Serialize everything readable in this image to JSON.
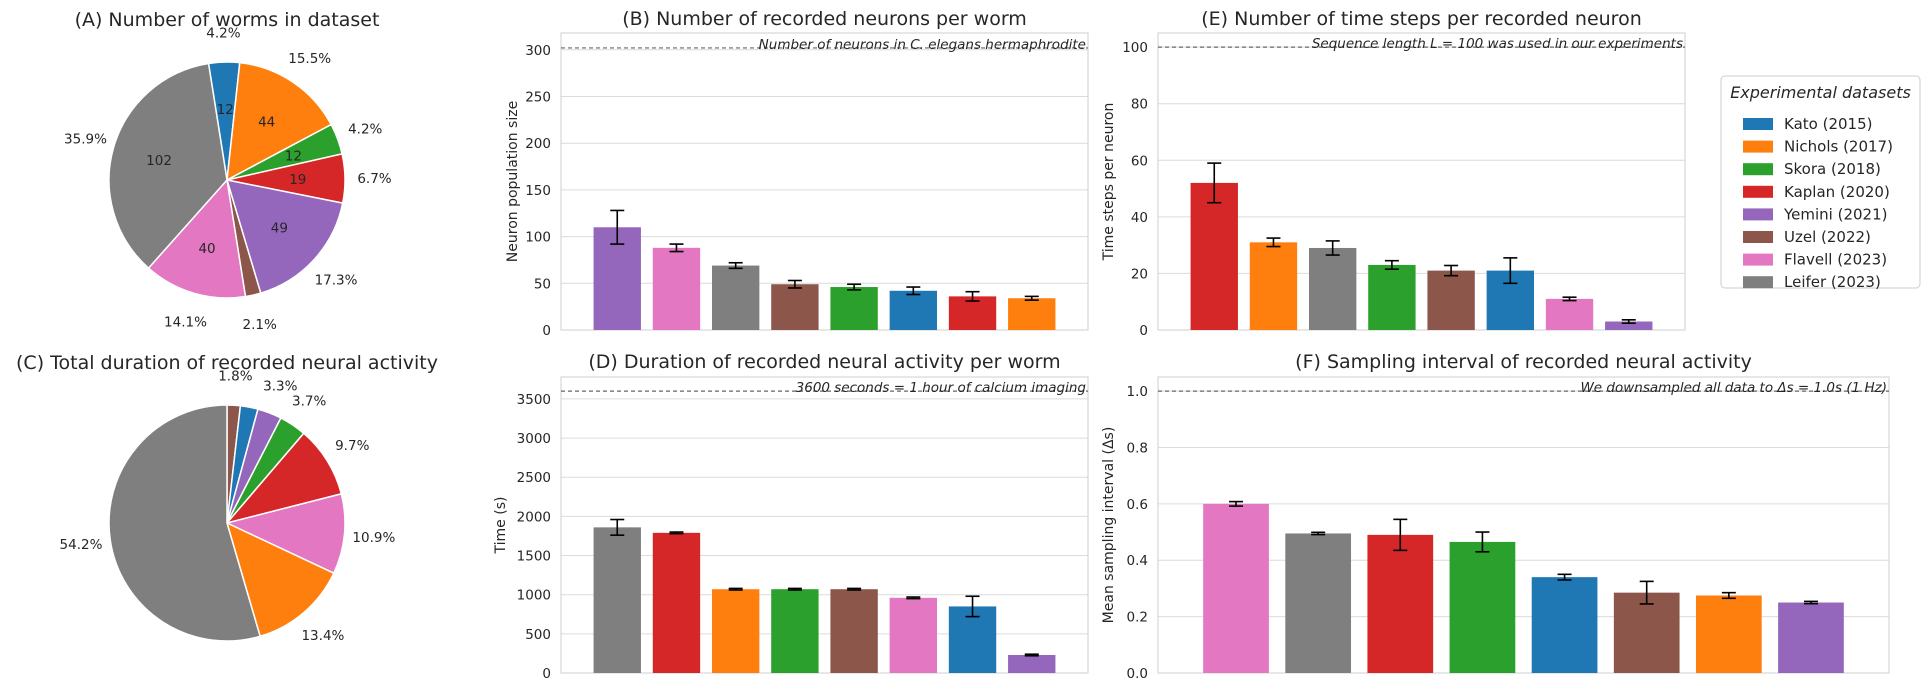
{
  "colors": {
    "Kato (2015)": "#1f77b4",
    "Nichols (2017)": "#ff7f0e",
    "Skora (2018)": "#2ca02c",
    "Kaplan (2020)": "#d62728",
    "Yemini (2021)": "#9467bd",
    "Uzel (2022)": "#8c564b",
    "Flavell (2023)": "#e377c2",
    "Leifer (2023)": "#7f7f7f"
  },
  "legend": {
    "title": "Experimental datasets",
    "items": [
      "Kato (2015)",
      "Nichols (2017)",
      "Skora (2018)",
      "Kaplan (2020)",
      "Yemini (2021)",
      "Uzel (2022)",
      "Flavell (2023)",
      "Leifer (2023)"
    ]
  },
  "chart_data": [
    {
      "id": "A",
      "type": "pie",
      "title": "(A) Number of worms in dataset",
      "slices": [
        {
          "dataset": "Kato (2015)",
          "value": 12,
          "pct": "4.2%"
        },
        {
          "dataset": "Nichols (2017)",
          "value": 44,
          "pct": "15.5%"
        },
        {
          "dataset": "Skora (2018)",
          "value": 12,
          "pct": "4.2%"
        },
        {
          "dataset": "Kaplan (2020)",
          "value": 19,
          "pct": "6.7%"
        },
        {
          "dataset": "Yemini (2021)",
          "value": 49,
          "pct": "17.3%"
        },
        {
          "dataset": "Uzel (2022)",
          "value": 6,
          "pct": "2.1%"
        },
        {
          "dataset": "Flavell (2023)",
          "value": 40,
          "pct": "14.1%"
        },
        {
          "dataset": "Leifer (2023)",
          "value": 102,
          "pct": "35.9%"
        }
      ],
      "show_counts": true,
      "counts_shown": {
        "Uzel (2022)": ""
      }
    },
    {
      "id": "C",
      "type": "pie",
      "title": "(C) Total duration of recorded neural activity",
      "slices": [
        {
          "dataset": "Uzel (2022)",
          "value": 1.8,
          "pct": "1.8%"
        },
        {
          "dataset": "Kato (2015)",
          "value": 2.4,
          "pct": ""
        },
        {
          "dataset": "Yemini (2021)",
          "value": 3.3,
          "pct": "3.3%"
        },
        {
          "dataset": "Skora (2018)",
          "value": 3.7,
          "pct": "3.7%"
        },
        {
          "dataset": "Kaplan (2020)",
          "value": 9.7,
          "pct": "9.7%"
        },
        {
          "dataset": "Flavell (2023)",
          "value": 10.9,
          "pct": "10.9%"
        },
        {
          "dataset": "Nichols (2017)",
          "value": 13.4,
          "pct": "13.4%"
        },
        {
          "dataset": "Leifer (2023)",
          "value": 54.2,
          "pct": "54.2%"
        }
      ],
      "show_counts": false
    },
    {
      "id": "B",
      "type": "bar",
      "title": "(B) Number of recorded neurons per worm",
      "ylabel": "Neuron population size",
      "ylim": [
        0,
        318
      ],
      "yticks": [
        0,
        50,
        100,
        150,
        200,
        250,
        300
      ],
      "reference": {
        "value": 302,
        "note": "Number of neurons in C. elegans hermaphrodite"
      },
      "bars": [
        {
          "dataset": "Yemini (2021)",
          "value": 110,
          "err": 18
        },
        {
          "dataset": "Flavell (2023)",
          "value": 88,
          "err": 4
        },
        {
          "dataset": "Leifer (2023)",
          "value": 69,
          "err": 3
        },
        {
          "dataset": "Uzel (2022)",
          "value": 49,
          "err": 4
        },
        {
          "dataset": "Skora (2018)",
          "value": 46,
          "err": 3
        },
        {
          "dataset": "Kato (2015)",
          "value": 42,
          "err": 4
        },
        {
          "dataset": "Kaplan (2020)",
          "value": 36,
          "err": 5
        },
        {
          "dataset": "Nichols (2017)",
          "value": 34,
          "err": 2
        }
      ]
    },
    {
      "id": "E",
      "type": "bar",
      "title": "(E) Number of time steps per recorded neuron",
      "ylabel": "Time steps per neuron",
      "ylim": [
        0,
        105
      ],
      "yticks": [
        0,
        20,
        40,
        60,
        80,
        100
      ],
      "reference": {
        "value": 100,
        "note": "Sequence length L = 100 was used in our experiments"
      },
      "bars": [
        {
          "dataset": "Kaplan (2020)",
          "value": 52,
          "err": 7
        },
        {
          "dataset": "Nichols (2017)",
          "value": 31,
          "err": 1.5
        },
        {
          "dataset": "Leifer (2023)",
          "value": 29,
          "err": 2.5
        },
        {
          "dataset": "Skora (2018)",
          "value": 23,
          "err": 1.5
        },
        {
          "dataset": "Uzel (2022)",
          "value": 21,
          "err": 1.8
        },
        {
          "dataset": "Kato (2015)",
          "value": 21,
          "err": 4.5
        },
        {
          "dataset": "Flavell (2023)",
          "value": 11,
          "err": 0.6
        },
        {
          "dataset": "Yemini (2021)",
          "value": 3,
          "err": 0.6
        }
      ]
    },
    {
      "id": "D",
      "type": "bar",
      "title": "(D) Duration of recorded neural activity per worm",
      "ylabel": "Time (s)",
      "ylim": [
        0,
        3780
      ],
      "yticks": [
        0,
        500,
        1000,
        1500,
        2000,
        2500,
        3000,
        3500
      ],
      "reference": {
        "value": 3600,
        "note": "3600 seconds = 1 hour of calcium imaging"
      },
      "bars": [
        {
          "dataset": "Leifer (2023)",
          "value": 1860,
          "err": 100
        },
        {
          "dataset": "Kaplan (2020)",
          "value": 1790,
          "err": 10
        },
        {
          "dataset": "Nichols (2017)",
          "value": 1070,
          "err": 10
        },
        {
          "dataset": "Skora (2018)",
          "value": 1070,
          "err": 10
        },
        {
          "dataset": "Uzel (2022)",
          "value": 1070,
          "err": 10
        },
        {
          "dataset": "Flavell (2023)",
          "value": 960,
          "err": 10
        },
        {
          "dataset": "Kato (2015)",
          "value": 850,
          "err": 130
        },
        {
          "dataset": "Yemini (2021)",
          "value": 230,
          "err": 10
        }
      ]
    },
    {
      "id": "F",
      "type": "bar",
      "title": "(F) Sampling interval of recorded neural activity",
      "ylabel": "Mean sampling interval (Δs)",
      "ylim": [
        0,
        1.05
      ],
      "yticks": [
        0.0,
        0.2,
        0.4,
        0.6,
        0.8,
        1.0
      ],
      "reference": {
        "value": 1.0,
        "note": "We downsampled all data to Δs = 1.0s (1 Hz)"
      },
      "bars": [
        {
          "dataset": "Flavell (2023)",
          "value": 0.6,
          "err": 0.008
        },
        {
          "dataset": "Leifer (2023)",
          "value": 0.495,
          "err": 0.004
        },
        {
          "dataset": "Kaplan (2020)",
          "value": 0.49,
          "err": 0.055
        },
        {
          "dataset": "Skora (2018)",
          "value": 0.465,
          "err": 0.035
        },
        {
          "dataset": "Kato (2015)",
          "value": 0.34,
          "err": 0.01
        },
        {
          "dataset": "Uzel (2022)",
          "value": 0.285,
          "err": 0.04
        },
        {
          "dataset": "Nichols (2017)",
          "value": 0.275,
          "err": 0.01
        },
        {
          "dataset": "Yemini (2021)",
          "value": 0.25,
          "err": 0.004
        }
      ]
    }
  ]
}
